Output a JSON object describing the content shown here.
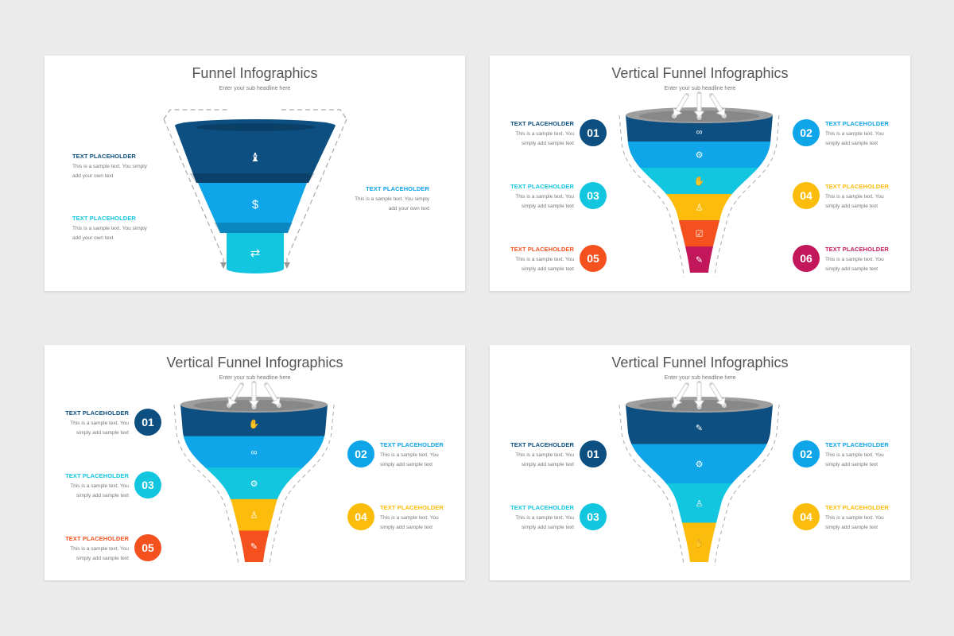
{
  "slides": [
    {
      "title": "Funnel Infographics",
      "subtitle": "Enter your sub headline here",
      "style": "stacked",
      "segments": [
        {
          "color": "#0d4f80",
          "icon": "chess-piece-icon",
          "glyph": "♝"
        },
        {
          "color": "#0ea5e9",
          "icon": "dollar-coin-icon",
          "glyph": "$"
        },
        {
          "color": "#12c6e0",
          "icon": "users-exchange-icon",
          "glyph": "⇄"
        }
      ],
      "items": [
        {
          "heading": "TEXT PLACEHOLDER",
          "text": "This is a sample text. You simply add your own text",
          "color": "#0d4f80"
        },
        {
          "heading": "TEXT PLACEHOLDER",
          "text": "This is a sample text. You simply add your own text",
          "color": "#12c6e0"
        },
        {
          "heading": "TEXT PLACEHOLDER",
          "text": "This is a sample text. You simply add your own text",
          "color": "#0ea5e9"
        }
      ]
    },
    {
      "title": "Vertical Funnel Infographics",
      "subtitle": "Enter your sub headline here",
      "style": "bell",
      "segments": [
        {
          "color": "#0d4f80",
          "icon": "link-icon",
          "glyph": "∞"
        },
        {
          "color": "#0ea5e9",
          "icon": "gear-icon",
          "glyph": "⚙"
        },
        {
          "color": "#12c6e0",
          "icon": "handshake-icon",
          "glyph": "✋"
        },
        {
          "color": "#fbbc0b",
          "icon": "user-money-icon",
          "glyph": "♙"
        },
        {
          "color": "#f4511e",
          "icon": "database-check-icon",
          "glyph": "☑"
        },
        {
          "color": "#c2185b",
          "icon": "edit-document-icon",
          "glyph": "✎"
        }
      ],
      "items": [
        {
          "num": "01",
          "heading": "TEXT PLACEHOLDER",
          "text": "This is a sample text. You simply add sample text",
          "color": "#0d4f80"
        },
        {
          "num": "02",
          "heading": "TEXT PLACEHOLDER",
          "text": "This is a sample text. You simply add sample text",
          "color": "#0ea5e9"
        },
        {
          "num": "03",
          "heading": "TEXT PLACEHOLDER",
          "text": "This is a sample text. You simply add sample text",
          "color": "#12c6e0"
        },
        {
          "num": "04",
          "heading": "TEXT PLACEHOLDER",
          "text": "This is a sample text. You simply add sample text",
          "color": "#fbbc0b"
        },
        {
          "num": "05",
          "heading": "TEXT PLACEHOLDER",
          "text": "This is a sample text. You simply add sample text",
          "color": "#f4511e"
        },
        {
          "num": "06",
          "heading": "TEXT PLACEHOLDER",
          "text": "This is a sample text. You simply add sample text",
          "color": "#c2185b"
        }
      ]
    },
    {
      "title": "Vertical Funnel Infographics",
      "subtitle": "Enter your sub headline here",
      "style": "bell",
      "segments": [
        {
          "color": "#0d4f80",
          "icon": "handshake-icon",
          "glyph": "✋"
        },
        {
          "color": "#0ea5e9",
          "icon": "link-icon",
          "glyph": "∞"
        },
        {
          "color": "#12c6e0",
          "icon": "gear-icon",
          "glyph": "⚙"
        },
        {
          "color": "#fbbc0b",
          "icon": "user-money-icon",
          "glyph": "♙"
        },
        {
          "color": "#f4511e",
          "icon": "edit-document-icon",
          "glyph": "✎"
        }
      ],
      "items": [
        {
          "num": "01",
          "heading": "TEXT PLACEHOLDER",
          "text": "This is a sample text. You simply add sample text",
          "color": "#0d4f80"
        },
        {
          "num": "02",
          "heading": "TEXT PLACEHOLDER",
          "text": "This is a sample text. You simply add sample text",
          "color": "#0ea5e9"
        },
        {
          "num": "03",
          "heading": "TEXT PLACEHOLDER",
          "text": "This is a sample text. You simply add sample text",
          "color": "#12c6e0"
        },
        {
          "num": "04",
          "heading": "TEXT PLACEHOLDER",
          "text": "This is a sample text. You simply add sample text",
          "color": "#fbbc0b"
        },
        {
          "num": "05",
          "heading": "TEXT PLACEHOLDER",
          "text": "This is a sample text. You simply add sample text",
          "color": "#f4511e"
        }
      ]
    },
    {
      "title": "Vertical Funnel Infographics",
      "subtitle": "Enter your sub headline here",
      "style": "bell",
      "segments": [
        {
          "color": "#0d4f80",
          "icon": "edit-document-icon",
          "glyph": "✎"
        },
        {
          "color": "#0ea5e9",
          "icon": "gear-icon",
          "glyph": "⚙"
        },
        {
          "color": "#12c6e0",
          "icon": "user-money-icon",
          "glyph": "♙"
        },
        {
          "color": "#fbbc0b",
          "icon": "handshake-icon",
          "glyph": "✋"
        }
      ],
      "items": [
        {
          "num": "01",
          "heading": "TEXT PLACEHOLDER",
          "text": "This is a sample text. You simply add sample text",
          "color": "#0d4f80"
        },
        {
          "num": "02",
          "heading": "TEXT PLACEHOLDER",
          "text": "This is a sample text. You simply add sample text",
          "color": "#0ea5e9"
        },
        {
          "num": "03",
          "heading": "TEXT PLACEHOLDER",
          "text": "This is a sample text. You simply add sample text",
          "color": "#12c6e0"
        },
        {
          "num": "04",
          "heading": "TEXT PLACEHOLDER",
          "text": "This is a sample text. You simply add sample text",
          "color": "#fbbc0b"
        }
      ]
    }
  ]
}
